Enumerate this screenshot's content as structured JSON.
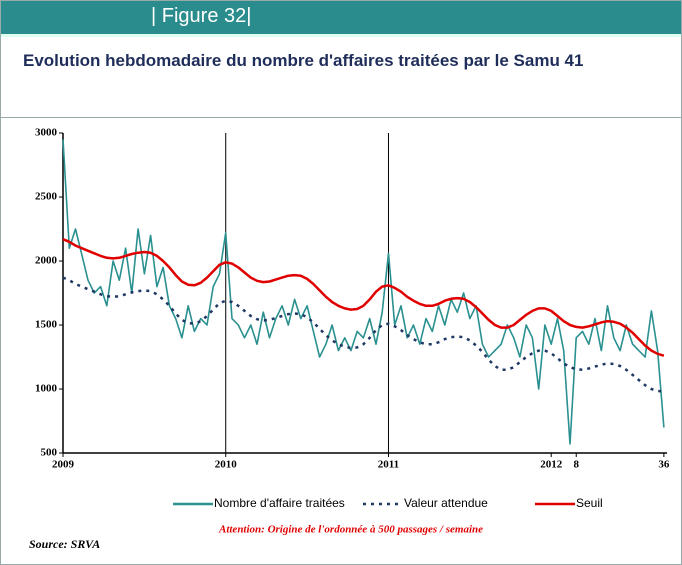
{
  "figure_label": "| Figure 32|",
  "chart_data": {
    "type": "line",
    "title": "Evolution  hebdomadaire du nombre d'affaires traitées par le Samu 41",
    "annotation": "Attention: Origine de l'ordonnée à 500 passages / semaine",
    "source": "Source: SRVA",
    "x": [
      0,
      2,
      4,
      6,
      8,
      10,
      12,
      14,
      16,
      18,
      20,
      22,
      24,
      26,
      28,
      30,
      32,
      34,
      36,
      38,
      40,
      42,
      44,
      46,
      48,
      50,
      52,
      54,
      56,
      58,
      60,
      62,
      64,
      66,
      68,
      70,
      72,
      74,
      76,
      78,
      80,
      82,
      84,
      86,
      88,
      90,
      92,
      94,
      96,
      98,
      100,
      102,
      104,
      106,
      108,
      110,
      112,
      114,
      116,
      118,
      120,
      122,
      124,
      126,
      128,
      130,
      132,
      134,
      136,
      138,
      140,
      142,
      144,
      146,
      148,
      150,
      152,
      154,
      156,
      158,
      160,
      162,
      164,
      166,
      168,
      170,
      172,
      174,
      176,
      178,
      180,
      182,
      184,
      186,
      188,
      190,
      192
    ],
    "xlim": [
      0,
      193
    ],
    "xticks": [
      {
        "value": 0,
        "label": "2009"
      },
      {
        "value": 52,
        "label": "2010"
      },
      {
        "value": 104,
        "label": "2011"
      },
      {
        "value": 156,
        "label": "2012"
      },
      {
        "value": 164,
        "label": "8"
      },
      {
        "value": 192,
        "label": "36"
      }
    ],
    "vlines": [
      52,
      104
    ],
    "ylim": [
      500,
      3000
    ],
    "yticks": [
      500,
      1000,
      1500,
      2000,
      2500,
      3000
    ],
    "series": [
      {
        "name": "Nombre d'affaire traitées",
        "color": "#2a9090",
        "style": "solid",
        "values": [
          2950,
          2100,
          2250,
          2050,
          1850,
          1750,
          1800,
          1650,
          2000,
          1850,
          2100,
          1750,
          2250,
          1900,
          2200,
          1800,
          1950,
          1650,
          1550,
          1400,
          1650,
          1450,
          1550,
          1500,
          1800,
          1900,
          2220,
          1550,
          1500,
          1400,
          1500,
          1350,
          1600,
          1400,
          1550,
          1650,
          1500,
          1700,
          1550,
          1650,
          1450,
          1250,
          1350,
          1500,
          1300,
          1400,
          1300,
          1450,
          1400,
          1550,
          1350,
          1600,
          2060,
          1500,
          1650,
          1400,
          1500,
          1350,
          1550,
          1450,
          1650,
          1500,
          1700,
          1600,
          1750,
          1550,
          1650,
          1350,
          1250,
          1300,
          1350,
          1500,
          1400,
          1250,
          1500,
          1400,
          1000,
          1500,
          1350,
          1550,
          1300,
          570,
          1400,
          1450,
          1350,
          1550,
          1300,
          1650,
          1400,
          1300,
          1500,
          1350,
          1300,
          1250,
          1610,
          1300,
          700
        ]
      },
      {
        "name": "Valeur attendue",
        "color": "#1f3864",
        "style": "dotted",
        "values": [
          1870,
          1850,
          1820,
          1800,
          1780,
          1760,
          1740,
          1725,
          1720,
          1725,
          1740,
          1755,
          1765,
          1770,
          1765,
          1740,
          1700,
          1650,
          1590,
          1540,
          1515,
          1510,
          1530,
          1570,
          1620,
          1670,
          1690,
          1680,
          1650,
          1610,
          1570,
          1545,
          1535,
          1540,
          1555,
          1570,
          1585,
          1590,
          1585,
          1560,
          1520,
          1470,
          1420,
          1380,
          1350,
          1330,
          1320,
          1325,
          1350,
          1400,
          1460,
          1500,
          1510,
          1490,
          1460,
          1420,
          1390,
          1365,
          1350,
          1350,
          1365,
          1390,
          1405,
          1410,
          1405,
          1380,
          1340,
          1290,
          1230,
          1180,
          1150,
          1150,
          1170,
          1210,
          1250,
          1280,
          1300,
          1300,
          1280,
          1240,
          1200,
          1170,
          1155,
          1150,
          1160,
          1175,
          1190,
          1200,
          1195,
          1180,
          1150,
          1110,
          1070,
          1030,
          1000,
          985,
          980
        ]
      },
      {
        "name": "Seuil",
        "color": "#e00000",
        "style": "solid",
        "values": [
          2170,
          2150,
          2120,
          2100,
          2080,
          2060,
          2040,
          2025,
          2020,
          2025,
          2040,
          2055,
          2065,
          2070,
          2065,
          2040,
          2000,
          1950,
          1890,
          1840,
          1815,
          1810,
          1830,
          1870,
          1920,
          1970,
          1990,
          1980,
          1950,
          1910,
          1870,
          1845,
          1835,
          1840,
          1855,
          1870,
          1885,
          1890,
          1885,
          1860,
          1820,
          1770,
          1720,
          1680,
          1650,
          1630,
          1620,
          1625,
          1650,
          1700,
          1760,
          1800,
          1810,
          1790,
          1760,
          1720,
          1690,
          1665,
          1650,
          1650,
          1665,
          1690,
          1705,
          1710,
          1705,
          1680,
          1640,
          1590,
          1540,
          1500,
          1480,
          1480,
          1500,
          1540,
          1580,
          1610,
          1630,
          1630,
          1610,
          1570,
          1530,
          1500,
          1485,
          1480,
          1490,
          1505,
          1520,
          1530,
          1525,
          1510,
          1480,
          1440,
          1390,
          1340,
          1300,
          1275,
          1260
        ]
      }
    ]
  }
}
